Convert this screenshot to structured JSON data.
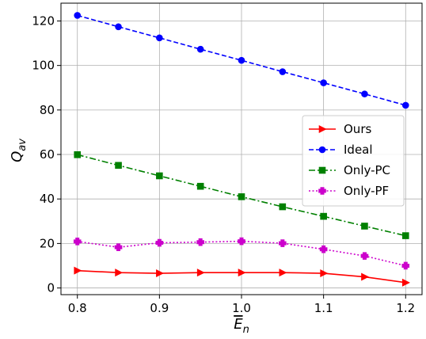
{
  "chart_data": {
    "type": "line",
    "title": "",
    "xlabel": "E̅n",
    "ylabel": "Qav",
    "x": [
      0.8,
      0.85,
      0.9,
      0.95,
      1.0,
      1.05,
      1.1,
      1.15,
      1.2
    ],
    "xlim": [
      0.78,
      1.22
    ],
    "ylim": [
      -3,
      128
    ],
    "x_ticks": [
      {
        "value": 0.8,
        "label": "0.8"
      },
      {
        "value": 0.9,
        "label": "0.9"
      },
      {
        "value": 1.0,
        "label": "1.0"
      },
      {
        "value": 1.1,
        "label": "1.1"
      },
      {
        "value": 1.2,
        "label": "1.2"
      }
    ],
    "y_ticks": [
      {
        "value": 0,
        "label": "0"
      },
      {
        "value": 20,
        "label": "20"
      },
      {
        "value": 40,
        "label": "40"
      },
      {
        "value": 60,
        "label": "60"
      },
      {
        "value": 80,
        "label": "80"
      },
      {
        "value": 100,
        "label": "100"
      },
      {
        "value": 120,
        "label": "120"
      }
    ],
    "grid": true,
    "legend_position": "center-right",
    "series": [
      {
        "name": "Ours",
        "color": "#ff0000",
        "marker": "triangle-right",
        "line_style": "solid",
        "values": [
          7.8,
          6.9,
          6.6,
          6.9,
          6.9,
          6.9,
          6.6,
          5.0,
          2.4
        ]
      },
      {
        "name": "Ideal",
        "color": "#0000ff",
        "marker": "circle",
        "line_style": "dashed",
        "values": [
          122.5,
          117.4,
          112.4,
          107.3,
          102.3,
          97.2,
          92.2,
          87.2,
          82.1
        ]
      },
      {
        "name": "Only-PC",
        "color": "#008000",
        "marker": "square",
        "line_style": "dashdot",
        "values": [
          59.9,
          55.1,
          50.4,
          45.7,
          41.0,
          36.5,
          32.2,
          27.8,
          23.5
        ]
      },
      {
        "name": "Only-PF",
        "color": "#cc00cc",
        "marker": "plus-filled",
        "line_style": "dotted",
        "values": [
          20.9,
          18.3,
          20.3,
          20.6,
          21.0,
          20.1,
          17.4,
          14.4,
          10.0
        ]
      }
    ]
  }
}
